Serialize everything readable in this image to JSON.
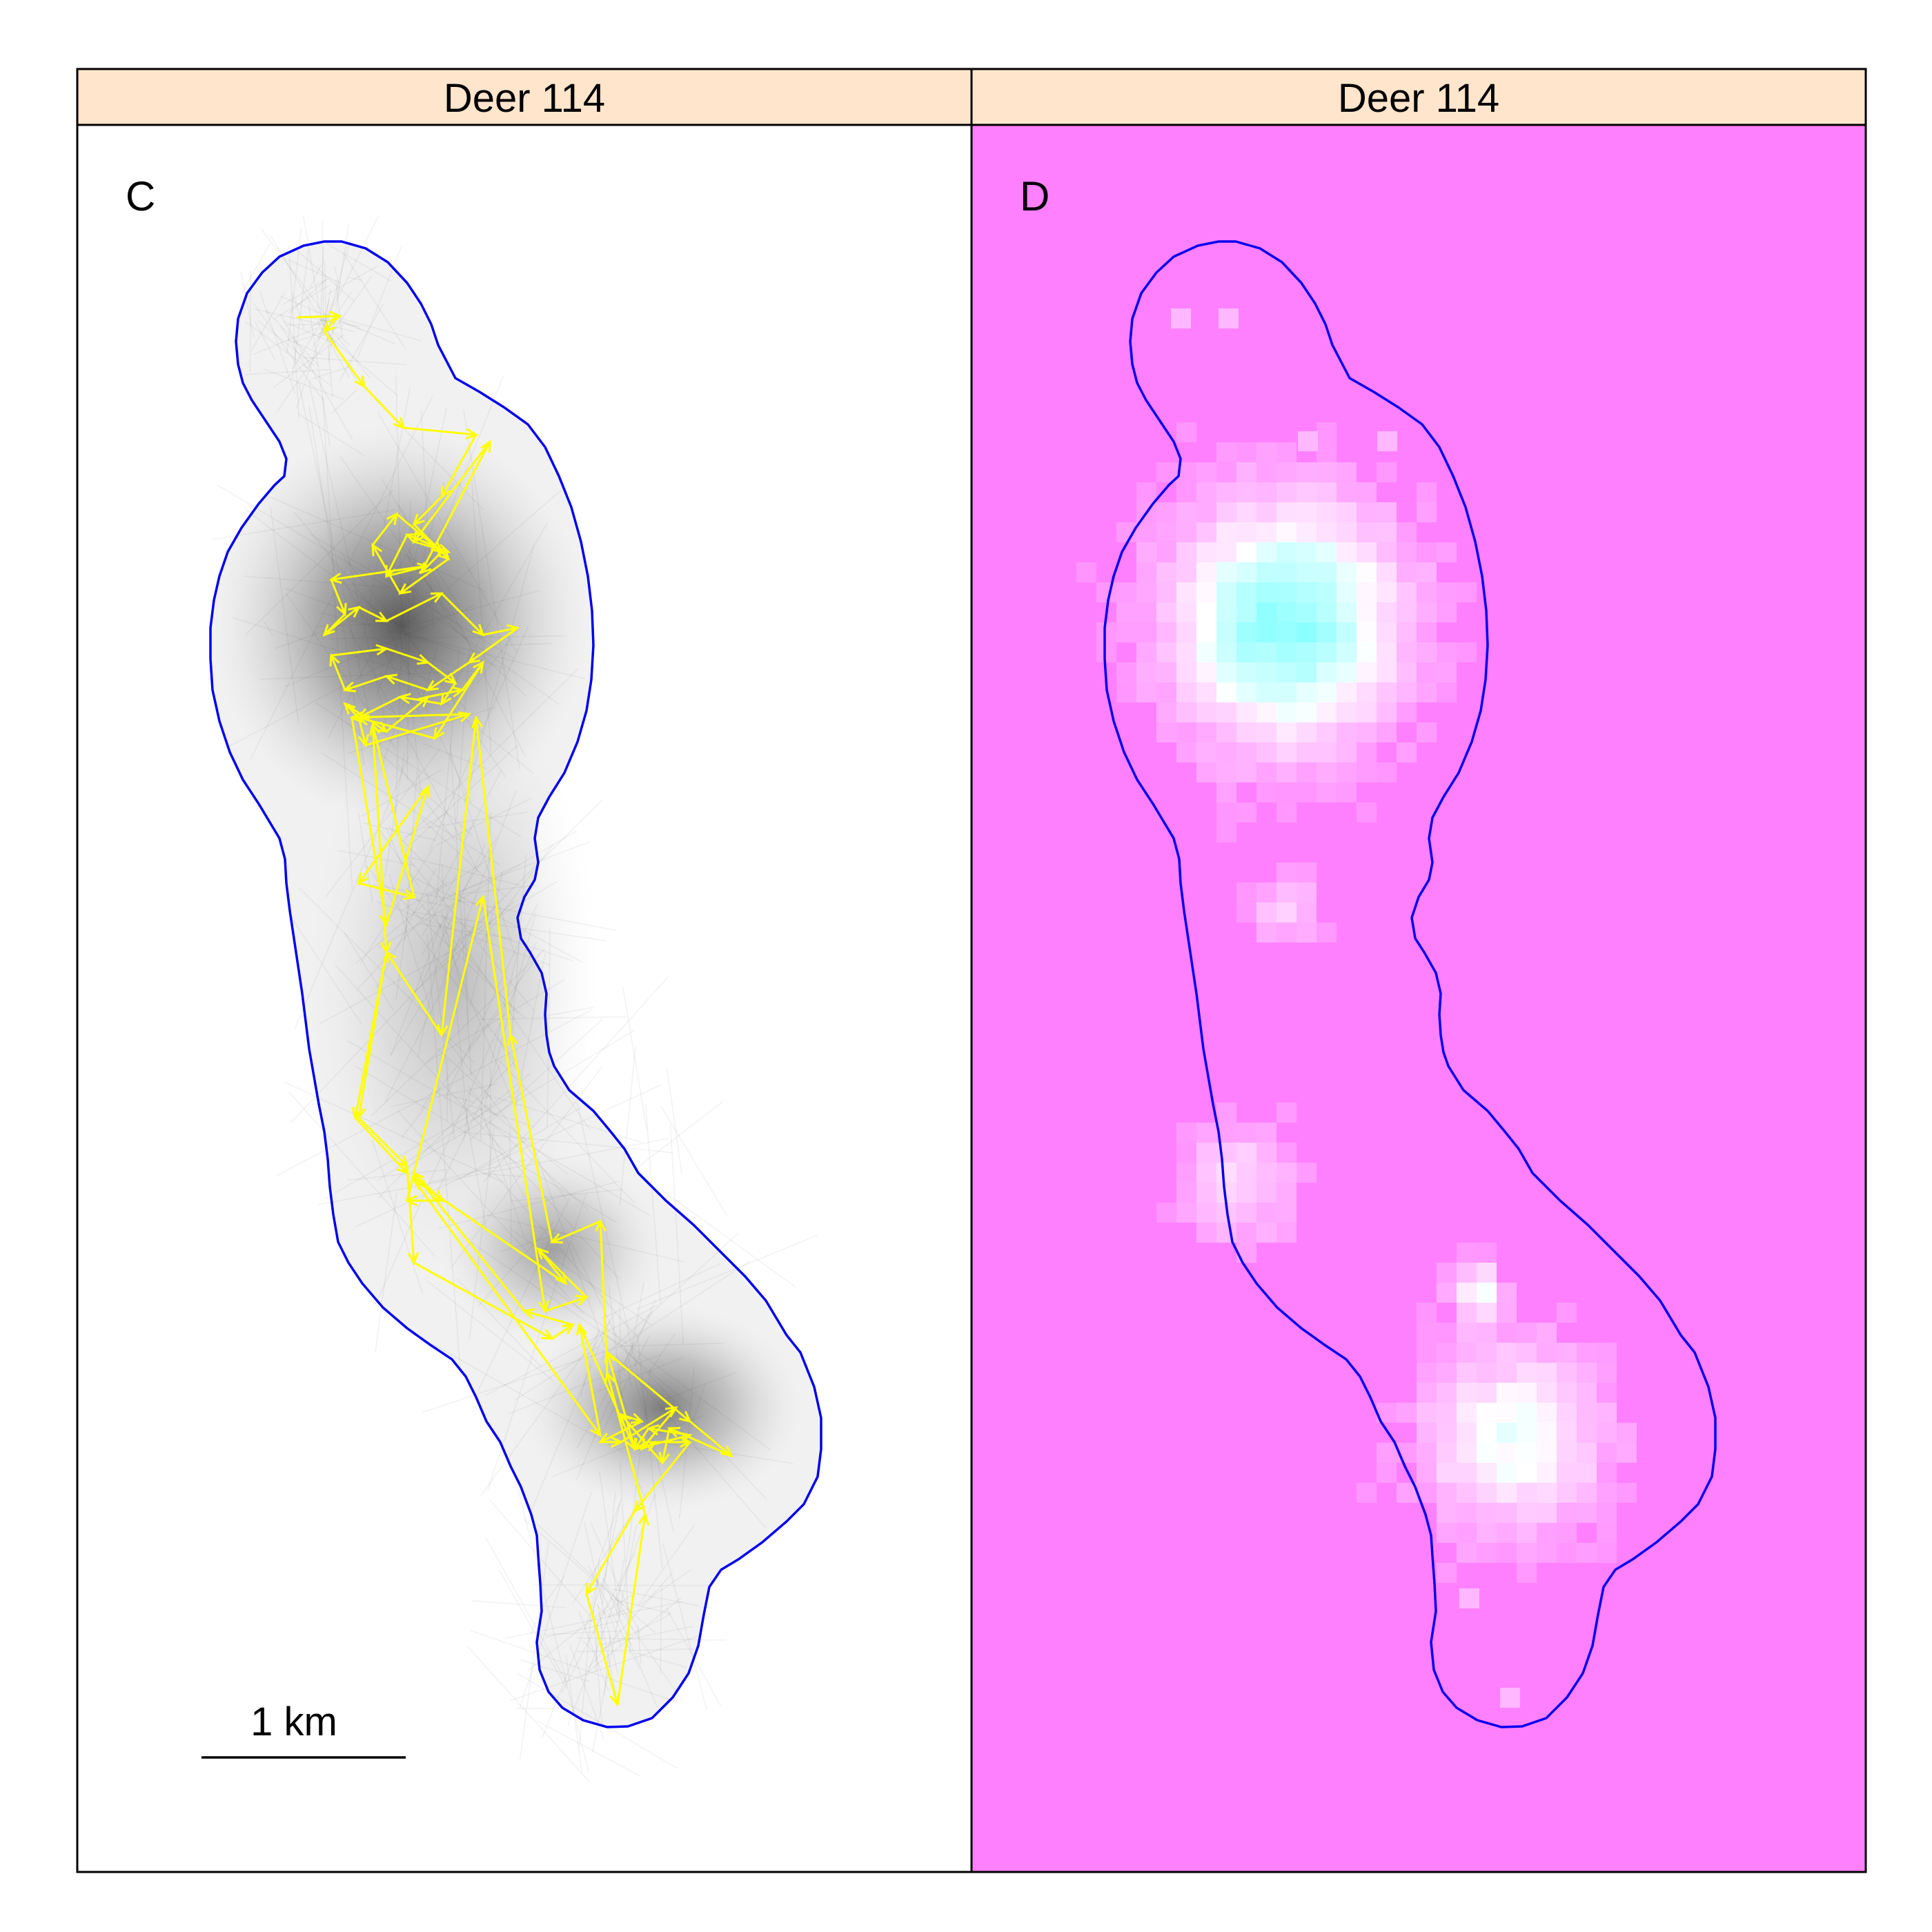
{
  "figure": {
    "panels": [
      {
        "strip_label": "Deer 114",
        "panel_letter": "C",
        "strip_color": "#ffe5cc",
        "background_color": "#ffffff",
        "boundary_color": "#0000ee",
        "track_color": "#ffff00",
        "simulated_paths_color": "#404040"
      },
      {
        "strip_label": "Deer 114",
        "panel_letter": "D",
        "strip_color": "#ffe5cc",
        "background_color": "#ff80ff",
        "boundary_color": "#0000ee",
        "low_density_color": "#ff80ff",
        "high_density_color": "#80ffff"
      }
    ],
    "scale_bar": {
      "label": "1 km"
    }
  }
}
